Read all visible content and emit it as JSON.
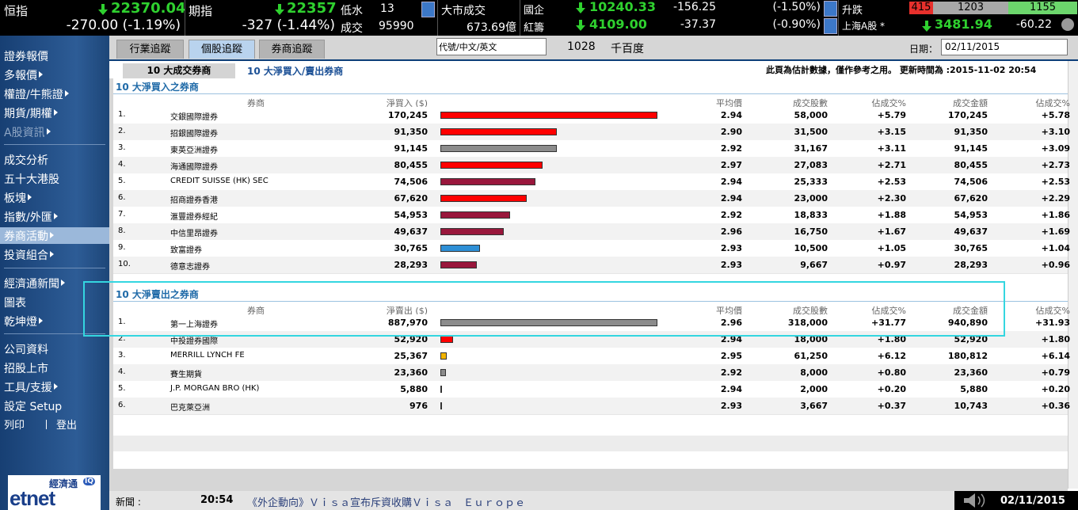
{
  "top": {
    "hsi": {
      "label": "恒指",
      "value": "22370.04",
      "change": "-270.00 (-1.19%)"
    },
    "futures": {
      "label": "期指",
      "value": "22357",
      "change": "-327 (-1.44%)"
    },
    "discount": {
      "label": "低水",
      "value": "13"
    },
    "volume": {
      "label": "成交",
      "value": "95990"
    },
    "turnover": {
      "label": "大市成交",
      "value": "673.69億"
    },
    "hscei": {
      "label": "國企",
      "value": "10240.33",
      "change": "-156.25",
      "pct": "(-1.50%)"
    },
    "redchip": {
      "label": "紅籌",
      "value": "4109.00",
      "change": "-37.37",
      "pct": "(-0.90%)"
    },
    "breadth": {
      "label": "升跌",
      "up": "415",
      "flat": "1203",
      "down": "1155"
    },
    "shanghai": {
      "label": "上海A股 *",
      "value": "3481.94",
      "change": "-60.22"
    }
  },
  "sidebar": [
    {
      "label": "證券報價",
      "submenu": false
    },
    {
      "label": "多報價",
      "submenu": true
    },
    {
      "label": "權證/牛熊證",
      "submenu": true
    },
    {
      "label": "期貨/期權",
      "submenu": true
    },
    {
      "label": "A股資訊",
      "submenu": true,
      "disabled": true
    },
    {
      "label": "成交分析",
      "submenu": false
    },
    {
      "label": "五十大港股",
      "submenu": false
    },
    {
      "label": "板塊",
      "submenu": true
    },
    {
      "label": "指數/外匯",
      "submenu": true
    },
    {
      "label": "券商活動",
      "submenu": true,
      "active": true
    },
    {
      "label": "投資組合",
      "submenu": true
    },
    {
      "label": "經濟通新聞",
      "submenu": true
    },
    {
      "label": "圖表",
      "submenu": false
    },
    {
      "label": "乾坤燈",
      "submenu": true
    },
    {
      "label": "公司資料",
      "submenu": false
    },
    {
      "label": "招股上市",
      "submenu": false
    },
    {
      "label": "工具/支援",
      "submenu": true
    },
    {
      "label": "設定 Setup",
      "submenu": false
    }
  ],
  "sidebar_footer": {
    "print": "列印",
    "logout": "登出"
  },
  "logo": {
    "chinese": "經濟通",
    "brand": "etnet",
    "badge": "IQ"
  },
  "tabs": [
    "行業追蹤",
    "個股追蹤",
    "券商追蹤"
  ],
  "search_placeholder": "代號/中文/英文",
  "stock": {
    "code": "1028",
    "name": "千百度"
  },
  "date_label": "日期：",
  "date": "02/11/2015",
  "subtabs": [
    "10 大成交券商",
    "10 大淨買入/賣出券商"
  ],
  "note": "此頁為估計數據，僅作參考之用。 更新時間為 :2015-11-02 20:54",
  "buy": {
    "title": "10 大淨買入之券商",
    "headers": [
      "券商",
      "淨買入 ($)",
      "平均價",
      "成交股數",
      "佔成交%",
      "成交金額",
      "佔成交%"
    ],
    "rows": [
      {
        "rank": "1.",
        "broker": "交銀國際證券",
        "net": 170245,
        "net_label": "170,245",
        "color": "#ff0000",
        "avg": "2.94",
        "shares": "58,000",
        "pct": "+5.79",
        "amount": "170,245",
        "pct2": "+5.78"
      },
      {
        "rank": "2.",
        "broker": "招銀國際證券",
        "net": 91350,
        "net_label": "91,350",
        "color": "#ff0000",
        "avg": "2.90",
        "shares": "31,500",
        "pct": "+3.15",
        "amount": "91,350",
        "pct2": "+3.10"
      },
      {
        "rank": "3.",
        "broker": "東英亞洲證券",
        "net": 91145,
        "net_label": "91,145",
        "color": "#8c8c8c",
        "avg": "2.92",
        "shares": "31,167",
        "pct": "+3.11",
        "amount": "91,145",
        "pct2": "+3.09"
      },
      {
        "rank": "4.",
        "broker": "海通國際證券",
        "net": 80455,
        "net_label": "80,455",
        "color": "#ff0000",
        "avg": "2.97",
        "shares": "27,083",
        "pct": "+2.71",
        "amount": "80,455",
        "pct2": "+2.73"
      },
      {
        "rank": "5.",
        "broker": "CREDIT SUISSE (HK) SEC",
        "net": 74506,
        "net_label": "74,506",
        "color": "#99173c",
        "avg": "2.94",
        "shares": "25,333",
        "pct": "+2.53",
        "amount": "74,506",
        "pct2": "+2.53"
      },
      {
        "rank": "6.",
        "broker": "招商證券香港",
        "net": 67620,
        "net_label": "67,620",
        "color": "#ff0000",
        "avg": "2.94",
        "shares": "23,000",
        "pct": "+2.30",
        "amount": "67,620",
        "pct2": "+2.29"
      },
      {
        "rank": "7.",
        "broker": "滙豐證券經紀",
        "net": 54953,
        "net_label": "54,953",
        "color": "#99173c",
        "avg": "2.92",
        "shares": "18,833",
        "pct": "+1.88",
        "amount": "54,953",
        "pct2": "+1.86"
      },
      {
        "rank": "8.",
        "broker": "中信里昂證券",
        "net": 49637,
        "net_label": "49,637",
        "color": "#99173c",
        "avg": "2.96",
        "shares": "16,750",
        "pct": "+1.67",
        "amount": "49,637",
        "pct2": "+1.69"
      },
      {
        "rank": "9.",
        "broker": "致富證券",
        "net": 30765,
        "net_label": "30,765",
        "color": "#2e8fd6",
        "avg": "2.93",
        "shares": "10,500",
        "pct": "+1.05",
        "amount": "30,765",
        "pct2": "+1.04"
      },
      {
        "rank": "10.",
        "broker": "德意志證券",
        "net": 28293,
        "net_label": "28,293",
        "color": "#99173c",
        "avg": "2.93",
        "shares": "9,667",
        "pct": "+0.97",
        "amount": "28,293",
        "pct2": "+0.96"
      }
    ]
  },
  "sell": {
    "title": "10 大淨賣出之券商",
    "headers": [
      "券商",
      "淨賣出 ($)",
      "平均價",
      "成交股數",
      "佔成交%",
      "成交金額",
      "佔成交%"
    ],
    "rows": [
      {
        "rank": "1.",
        "broker": "第一上海證券",
        "net": 887970,
        "net_label": "887,970",
        "color": "#8c8c8c",
        "avg": "2.96",
        "shares": "318,000",
        "pct": "+31.77",
        "amount": "940,890",
        "pct2": "+31.93"
      },
      {
        "rank": "2.",
        "broker": "中投證券國際",
        "net": 52920,
        "net_label": "52,920",
        "color": "#ff0000",
        "avg": "2.94",
        "shares": "18,000",
        "pct": "+1.80",
        "amount": "52,920",
        "pct2": "+1.80"
      },
      {
        "rank": "3.",
        "broker": "MERRILL LYNCH FE",
        "net": 25367,
        "net_label": "25,367",
        "color": "#f2b400",
        "avg": "2.95",
        "shares": "61,250",
        "pct": "+6.12",
        "amount": "180,812",
        "pct2": "+6.14"
      },
      {
        "rank": "4.",
        "broker": "賽生期貨",
        "net": 23360,
        "net_label": "23,360",
        "color": "#8c8c8c",
        "avg": "2.92",
        "shares": "8,000",
        "pct": "+0.80",
        "amount": "23,360",
        "pct2": "+0.79"
      },
      {
        "rank": "5.",
        "broker": "J.P. MORGAN BRO (HK)",
        "net": 5880,
        "net_label": "5,880",
        "color": "#8c8c8c",
        "avg": "2.94",
        "shares": "2,000",
        "pct": "+0.20",
        "amount": "5,880",
        "pct2": "+0.20"
      },
      {
        "rank": "6.",
        "broker": "巴克萊亞洲",
        "net": 976,
        "net_label": "976",
        "color": "#8c8c8c",
        "avg": "2.93",
        "shares": "3,667",
        "pct": "+0.37",
        "amount": "10,743",
        "pct2": "+0.36"
      }
    ]
  },
  "news": {
    "label": "新聞 :",
    "time": "20:54",
    "headline": "《外企動向》Ｖｉｓａ宣布斥資收購Ｖｉｓａ　Ｅｕｒｏｐｅ",
    "date": "02/11/2015"
  }
}
